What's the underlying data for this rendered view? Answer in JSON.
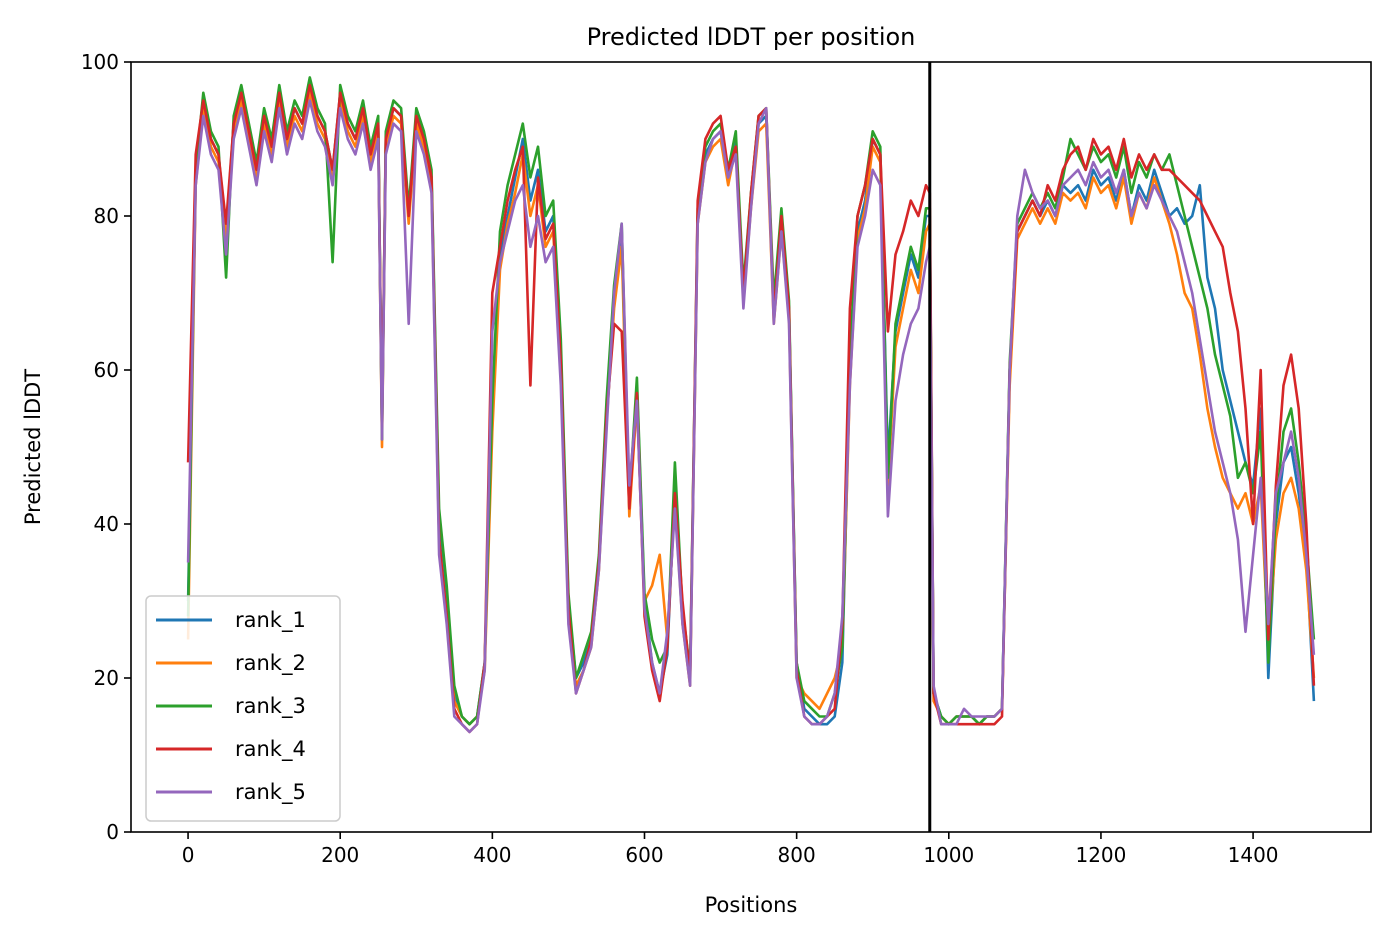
{
  "chart_data": {
    "type": "line",
    "title": "Predicted lDDT per position",
    "xlabel": "Positions",
    "ylabel": "Predicted lDDT",
    "xlim": [
      -75,
      1555
    ],
    "ylim": [
      0,
      100
    ],
    "xticks": [
      0,
      200,
      400,
      600,
      800,
      1000,
      1200,
      1400
    ],
    "yticks": [
      0,
      20,
      40,
      60,
      80,
      100
    ],
    "grid": false,
    "legend_position": "lower-left",
    "vline_x": 975,
    "x": [
      0,
      10,
      20,
      30,
      40,
      50,
      60,
      70,
      80,
      90,
      100,
      110,
      120,
      130,
      140,
      150,
      160,
      170,
      180,
      190,
      200,
      210,
      220,
      230,
      240,
      250,
      255,
      260,
      270,
      280,
      290,
      300,
      310,
      320,
      330,
      340,
      350,
      360,
      370,
      380,
      390,
      400,
      410,
      420,
      430,
      440,
      450,
      460,
      470,
      480,
      490,
      500,
      510,
      520,
      530,
      540,
      550,
      560,
      570,
      580,
      590,
      600,
      610,
      620,
      630,
      640,
      650,
      660,
      670,
      680,
      690,
      700,
      710,
      720,
      730,
      740,
      750,
      760,
      770,
      780,
      790,
      800,
      810,
      820,
      830,
      840,
      850,
      860,
      870,
      880,
      890,
      900,
      910,
      920,
      930,
      940,
      950,
      960,
      970,
      975,
      980,
      990,
      1000,
      1010,
      1020,
      1030,
      1040,
      1050,
      1060,
      1070,
      1080,
      1090,
      1100,
      1110,
      1120,
      1130,
      1140,
      1150,
      1160,
      1170,
      1180,
      1190,
      1200,
      1210,
      1220,
      1230,
      1240,
      1250,
      1260,
      1270,
      1280,
      1290,
      1300,
      1310,
      1320,
      1330,
      1340,
      1350,
      1360,
      1370,
      1380,
      1390,
      1400,
      1410,
      1420,
      1430,
      1440,
      1450,
      1460,
      1470,
      1480
    ],
    "series": [
      {
        "name": "rank_1",
        "color": "#1f77b4",
        "values": [
          30,
          85,
          95,
          90,
          88,
          78,
          92,
          96,
          91,
          86,
          93,
          89,
          96,
          90,
          94,
          92,
          97,
          93,
          91,
          86,
          96,
          92,
          90,
          94,
          88,
          92,
          52,
          90,
          94,
          93,
          80,
          93,
          90,
          85,
          40,
          30,
          18,
          15,
          14,
          15,
          22,
          55,
          75,
          80,
          85,
          90,
          82,
          86,
          78,
          80,
          62,
          30,
          20,
          22,
          25,
          35,
          55,
          70,
          78,
          42,
          58,
          30,
          22,
          18,
          23,
          45,
          28,
          20,
          80,
          88,
          90,
          91,
          85,
          90,
          70,
          82,
          92,
          93,
          68,
          80,
          68,
          22,
          16,
          15,
          14,
          14,
          15,
          22,
          60,
          78,
          82,
          90,
          88,
          48,
          65,
          70,
          75,
          72,
          80,
          80,
          18,
          15,
          14,
          15,
          15,
          15,
          14,
          15,
          15,
          16,
          60,
          78,
          80,
          82,
          80,
          82,
          80,
          84,
          83,
          84,
          82,
          86,
          84,
          85,
          82,
          86,
          80,
          84,
          82,
          86,
          83,
          80,
          81,
          79,
          80,
          84,
          72,
          68,
          60,
          56,
          52,
          48,
          45,
          55,
          20,
          40,
          48,
          50,
          44,
          36,
          17
        ]
      },
      {
        "name": "rank_2",
        "color": "#ff7f0e",
        "values": [
          25,
          84,
          94,
          89,
          87,
          77,
          91,
          95,
          90,
          85,
          92,
          88,
          95,
          89,
          93,
          91,
          96,
          92,
          90,
          85,
          95,
          91,
          89,
          93,
          87,
          91,
          50,
          89,
          93,
          92,
          79,
          92,
          89,
          84,
          38,
          28,
          17,
          15,
          14,
          15,
          21,
          52,
          73,
          79,
          83,
          88,
          80,
          84,
          76,
          78,
          60,
          28,
          19,
          21,
          24,
          34,
          53,
          68,
          76,
          41,
          56,
          30,
          32,
          36,
          25,
          43,
          27,
          19,
          79,
          87,
          89,
          90,
          84,
          89,
          69,
          81,
          91,
          92,
          66,
          78,
          67,
          20,
          18,
          17,
          16,
          18,
          20,
          24,
          58,
          77,
          81,
          89,
          87,
          45,
          63,
          68,
          73,
          70,
          78,
          79,
          17,
          15,
          14,
          15,
          15,
          15,
          14,
          15,
          15,
          16,
          58,
          77,
          79,
          81,
          79,
          81,
          79,
          83,
          82,
          83,
          81,
          85,
          83,
          84,
          81,
          85,
          79,
          83,
          81,
          85,
          82,
          79,
          75,
          70,
          68,
          62,
          55,
          50,
          46,
          44,
          42,
          44,
          40,
          45,
          24,
          38,
          44,
          46,
          42,
          34,
          20
        ]
      },
      {
        "name": "rank_3",
        "color": "#2ca02c",
        "values": [
          28,
          86,
          96,
          91,
          89,
          72,
          93,
          97,
          92,
          87,
          94,
          90,
          97,
          91,
          95,
          93,
          98,
          94,
          92,
          74,
          97,
          93,
          91,
          95,
          89,
          93,
          51,
          91,
          95,
          94,
          81,
          94,
          91,
          86,
          42,
          32,
          19,
          15,
          14,
          15,
          22,
          56,
          78,
          84,
          88,
          92,
          85,
          89,
          80,
          82,
          64,
          31,
          20,
          23,
          26,
          36,
          56,
          71,
          79,
          43,
          59,
          31,
          25,
          22,
          24,
          48,
          29,
          21,
          81,
          89,
          91,
          92,
          86,
          91,
          71,
          83,
          93,
          94,
          69,
          81,
          69,
          22,
          17,
          16,
          15,
          15,
          18,
          24,
          62,
          80,
          84,
          91,
          89,
          46,
          66,
          71,
          76,
          73,
          81,
          81,
          18,
          15,
          14,
          15,
          15,
          15,
          14,
          15,
          15,
          16,
          61,
          79,
          81,
          83,
          81,
          83,
          81,
          85,
          90,
          88,
          86,
          89,
          87,
          88,
          85,
          89,
          83,
          87,
          85,
          88,
          86,
          88,
          84,
          80,
          76,
          72,
          68,
          62,
          58,
          54,
          46,
          48,
          44,
          52,
          22,
          42,
          52,
          55,
          48,
          38,
          25
        ]
      },
      {
        "name": "rank_4",
        "color": "#d62728",
        "values": [
          48,
          88,
          95,
          90,
          88,
          79,
          92,
          96,
          91,
          86,
          93,
          89,
          96,
          90,
          94,
          92,
          97,
          93,
          91,
          86,
          96,
          92,
          90,
          94,
          88,
          92,
          53,
          90,
          94,
          93,
          80,
          93,
          90,
          85,
          38,
          28,
          16,
          14,
          13,
          14,
          22,
          70,
          76,
          82,
          86,
          89,
          58,
          85,
          77,
          79,
          61,
          29,
          18,
          21,
          25,
          35,
          54,
          66,
          65,
          42,
          57,
          28,
          21,
          17,
          24,
          44,
          30,
          20,
          82,
          90,
          92,
          93,
          86,
          89,
          70,
          83,
          93,
          94,
          67,
          80,
          68,
          21,
          15,
          14,
          14,
          15,
          16,
          27,
          68,
          80,
          84,
          90,
          88,
          65,
          75,
          78,
          82,
          80,
          84,
          83,
          18,
          14,
          14,
          14,
          14,
          14,
          14,
          14,
          14,
          15,
          60,
          78,
          80,
          82,
          80,
          84,
          82,
          86,
          88,
          89,
          86,
          90,
          88,
          89,
          86,
          90,
          85,
          88,
          86,
          88,
          86,
          86,
          85,
          84,
          83,
          82,
          80,
          78,
          76,
          70,
          65,
          55,
          40,
          60,
          25,
          45,
          58,
          62,
          55,
          40,
          19
        ]
      },
      {
        "name": "rank_5",
        "color": "#9467bd",
        "values": [
          35,
          84,
          93,
          88,
          86,
          75,
          90,
          94,
          89,
          84,
          91,
          87,
          94,
          88,
          92,
          90,
          95,
          91,
          89,
          84,
          94,
          90,
          88,
          92,
          86,
          90,
          51,
          88,
          92,
          91,
          66,
          91,
          88,
          83,
          36,
          27,
          15,
          14,
          13,
          14,
          21,
          65,
          74,
          78,
          82,
          84,
          76,
          80,
          74,
          76,
          58,
          27,
          18,
          21,
          24,
          34,
          52,
          70,
          79,
          45,
          56,
          29,
          22,
          18,
          26,
          42,
          27,
          19,
          79,
          87,
          90,
          91,
          85,
          88,
          68,
          81,
          92,
          94,
          66,
          78,
          66,
          20,
          15,
          14,
          14,
          15,
          18,
          28,
          58,
          76,
          80,
          86,
          84,
          41,
          56,
          62,
          66,
          68,
          74,
          76,
          19,
          14,
          14,
          14,
          16,
          15,
          15,
          15,
          15,
          16,
          60,
          80,
          86,
          83,
          81,
          82,
          80,
          84,
          85,
          86,
          84,
          87,
          85,
          86,
          83,
          86,
          80,
          83,
          81,
          84,
          82,
          80,
          78,
          74,
          70,
          64,
          58,
          52,
          48,
          44,
          38,
          26,
          36,
          46,
          27,
          44,
          48,
          52,
          46,
          36,
          23
        ]
      }
    ]
  }
}
